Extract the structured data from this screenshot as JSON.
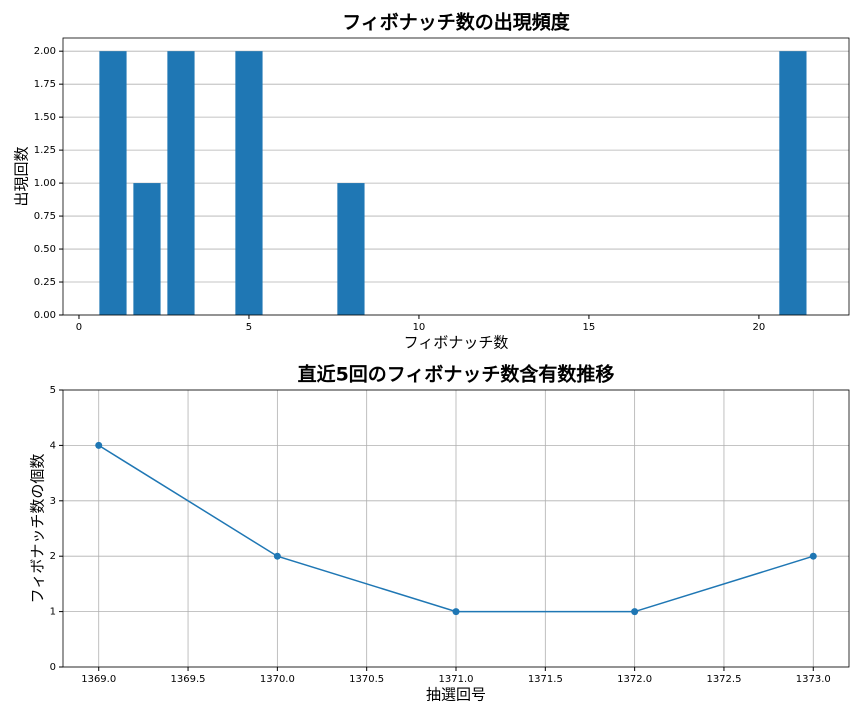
{
  "chart_data": [
    {
      "type": "bar",
      "title": "フィボナッチ数の出現頻度",
      "x_label": "フィボナッチ数",
      "y_label": "出現回数",
      "x": [
        1,
        2,
        3,
        5,
        8,
        21
      ],
      "values": [
        2,
        1,
        2,
        2,
        1,
        2
      ],
      "color": "#1f77b4",
      "bar_width": 0.8,
      "xlim": [
        -0.47,
        22.65
      ],
      "xticks": [
        0,
        5,
        10,
        15,
        20
      ],
      "ylim": [
        0,
        2.1
      ],
      "yticks": [
        {
          "value": 0,
          "label": "0.00"
        },
        {
          "value": 0.25,
          "label": "0.25"
        },
        {
          "value": 0.5,
          "label": "0.50"
        },
        {
          "value": 0.75,
          "label": "0.75"
        },
        {
          "value": 1,
          "label": "1.00"
        },
        {
          "value": 1.25,
          "label": "1.25"
        },
        {
          "value": 1.5,
          "label": "1.50"
        },
        {
          "value": 1.75,
          "label": "1.75"
        },
        {
          "value": 2,
          "label": "2.00"
        }
      ],
      "grid": "y"
    },
    {
      "type": "line",
      "title": "直近5回のフィボナッチ数含有数推移",
      "x_label": "抽選回号",
      "y_label": "フィボナッチ数の個数",
      "x": [
        1369,
        1370,
        1371,
        1372,
        1373
      ],
      "values": [
        4,
        2,
        1,
        1,
        2
      ],
      "color": "#1f77b4",
      "xlim": [
        1368.8,
        1373.2
      ],
      "xticks": [
        {
          "value": 1369,
          "label": "1369.0"
        },
        {
          "value": 1369.5,
          "label": "1369.5"
        },
        {
          "value": 1370,
          "label": "1370.0"
        },
        {
          "value": 1370.5,
          "label": "1370.5"
        },
        {
          "value": 1371,
          "label": "1371.0"
        },
        {
          "value": 1371.5,
          "label": "1371.5"
        },
        {
          "value": 1372,
          "label": "1372.0"
        },
        {
          "value": 1372.5,
          "label": "1372.5"
        },
        {
          "value": 1373,
          "label": "1373.0"
        }
      ],
      "ylim": [
        0,
        5
      ],
      "yticks": [
        0,
        1,
        2,
        3,
        4,
        5
      ],
      "grid": "both"
    }
  ]
}
